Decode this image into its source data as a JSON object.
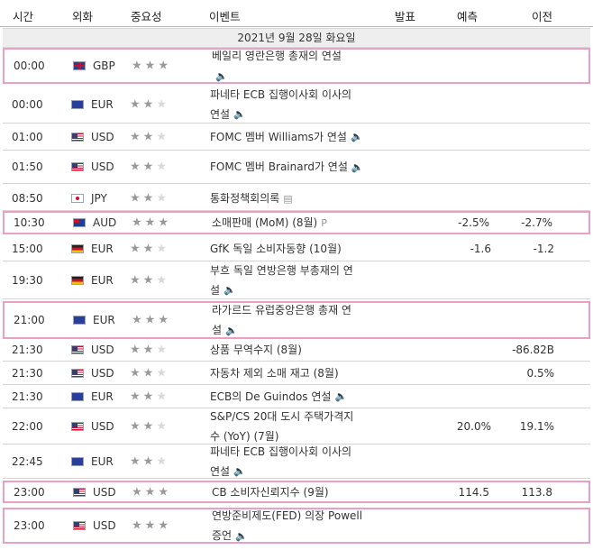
{
  "header": {
    "time": "시간",
    "currency": "외화",
    "importance": "중요성",
    "event": "이벤트",
    "actual": "발표",
    "forecast": "예측",
    "previous": "이전"
  },
  "date_label": "2021년 9월 28일 화요일",
  "colors": {
    "highlight": "#e8a0c6",
    "star_on": "#999999",
    "star_off": "#d9d9d9"
  },
  "rows": [
    {
      "time": "00:00",
      "flag": "gbp",
      "currency": "GBP",
      "stars": 3,
      "event_line1": "베일리 영란은행 총재의 연설",
      "event_line2": "",
      "icon": "sound-icon",
      "actual": "",
      "previous": "",
      "highlight": true
    },
    {
      "time": "00:00",
      "flag": "eur",
      "currency": "EUR",
      "stars": 2,
      "event_line1": "파네타 ECB 집행이사회 이사의",
      "event_line2": "연설",
      "icon": "sound-icon",
      "actual": "",
      "previous": "",
      "highlight": false
    },
    {
      "time": "01:00",
      "flag": "usd",
      "currency": "USD",
      "stars": 2,
      "event_line1": "FOMC 멤버 Williams가 연설",
      "event_line2": "",
      "icon": "sound-icon",
      "actual": "",
      "previous": "",
      "highlight": false
    },
    {
      "time": "01:50",
      "flag": "usd",
      "currency": "USD",
      "stars": 2,
      "event_line1": "FOMC 멤버 Brainard가 연설",
      "event_line2": "",
      "icon": "sound-icon",
      "actual": "",
      "previous": "",
      "highlight": false
    },
    {
      "time": "08:50",
      "flag": "jpy",
      "currency": "JPY",
      "stars": 2,
      "event_line1": "통화정책회의록",
      "event_line2": "",
      "icon": "document-icon",
      "actual": "",
      "previous": "",
      "highlight": false
    },
    {
      "time": "10:30",
      "flag": "aud",
      "currency": "AUD",
      "stars": 3,
      "event_line1": "소매판매 (MoM) (8월)",
      "event_line2": "",
      "icon": "preliminary-icon",
      "actual": "-2.5%",
      "previous": "-2.7%",
      "highlight": true
    },
    {
      "time": "15:00",
      "flag": "deu",
      "currency": "EUR",
      "stars": 2,
      "event_line1": "GfK 독일 소비자동향 (10월)",
      "event_line2": "",
      "icon": "",
      "actual": "-1.6",
      "previous": "-1.2",
      "highlight": false
    },
    {
      "time": "19:30",
      "flag": "deu",
      "currency": "EUR",
      "stars": 2,
      "event_line1": "부흐 독일 연방은행 부총재의 연",
      "event_line2": "설",
      "icon": "sound-icon",
      "actual": "",
      "previous": "",
      "highlight": false
    },
    {
      "time": "21:00",
      "flag": "eur",
      "currency": "EUR",
      "stars": 3,
      "event_line1": "라가르드 유럽중앙은행 총재 연",
      "event_line2": "설",
      "icon": "sound-icon",
      "actual": "",
      "previous": "",
      "highlight": true
    },
    {
      "time": "21:30",
      "flag": "usd",
      "currency": "USD",
      "stars": 2,
      "event_line1": "상품 무역수지 (8월)",
      "event_line2": "",
      "icon": "",
      "actual": "",
      "previous": "-86.82B",
      "highlight": false
    },
    {
      "time": "21:30",
      "flag": "usd",
      "currency": "USD",
      "stars": 2,
      "event_line1": "자동차 제외 소매 재고 (8월)",
      "event_line2": "",
      "icon": "",
      "actual": "",
      "previous": "0.5%",
      "highlight": false
    },
    {
      "time": "21:30",
      "flag": "eur",
      "currency": "EUR",
      "stars": 2,
      "event_line1": "ECB의 De Guindos 연설",
      "event_line2": "",
      "icon": "sound-icon",
      "actual": "",
      "previous": "",
      "highlight": false
    },
    {
      "time": "22:00",
      "flag": "usd",
      "currency": "USD",
      "stars": 2,
      "event_line1": "S&P/CS 20대 도시 주택가격지",
      "event_line2": "수 (YoY) (7월)",
      "icon": "",
      "actual": "20.0%",
      "previous": "19.1%",
      "highlight": false
    },
    {
      "time": "22:45",
      "flag": "eur",
      "currency": "EUR",
      "stars": 2,
      "event_line1": "파네타 ECB 집행이사회 이사의",
      "event_line2": "연설",
      "icon": "sound-icon",
      "actual": "",
      "previous": "",
      "highlight": false
    },
    {
      "time": "23:00",
      "flag": "usd",
      "currency": "USD",
      "stars": 3,
      "event_line1": "CB 소비자신뢰지수 (9월)",
      "event_line2": "",
      "icon": "",
      "actual": "114.5",
      "previous": "113.8",
      "highlight": true
    },
    {
      "time": "23:00",
      "flag": "usd",
      "currency": "USD",
      "stars": 3,
      "event_line1": "연방준비제도(FED) 의장 Powell",
      "event_line2": "증언",
      "icon": "sound-icon",
      "actual": "",
      "previous": "",
      "highlight": true
    }
  ]
}
